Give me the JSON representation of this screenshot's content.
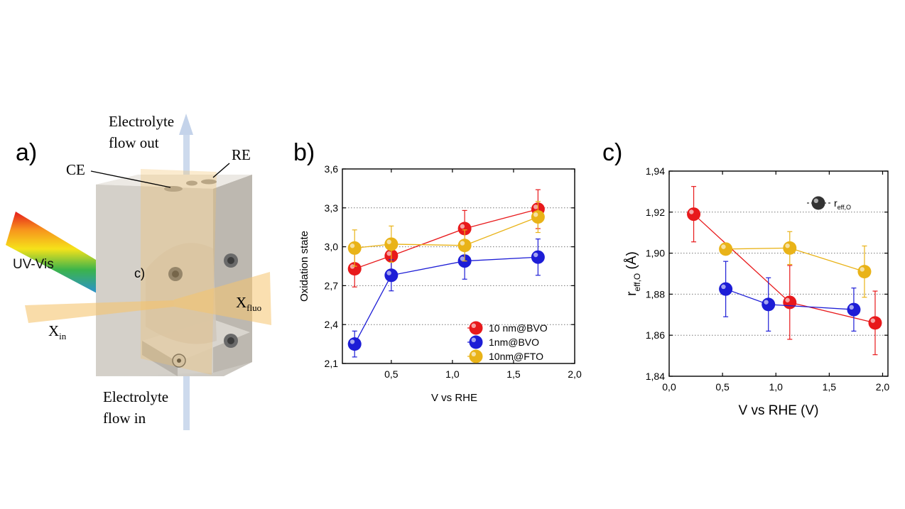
{
  "panels": {
    "a": {
      "label": "a)"
    },
    "b": {
      "label": "b)"
    },
    "c": {
      "label": "c)"
    }
  },
  "illustration": {
    "electrolyte_out": [
      "Electrolyte",
      "flow out"
    ],
    "electrolyte_in": [
      "Electrolyte",
      "flow in"
    ],
    "ce": "CE",
    "re": "RE",
    "uv_vis": "UV-Vis",
    "c_marker": "c)",
    "x_in": {
      "base": "X",
      "sub": "in"
    },
    "x_fluo": {
      "base": "X",
      "sub": "fluo"
    }
  },
  "chart_data": [
    {
      "type": "scatter",
      "panel": "b",
      "xlabel": "V vs RHE",
      "ylabel": "Oxidation state",
      "xlim": [
        0.1,
        2.0
      ],
      "ylim": [
        2.1,
        3.6
      ],
      "xticks": [
        "0,5",
        "1,0",
        "1,5",
        "2,0"
      ],
      "xtick_values": [
        0.5,
        1.0,
        1.5,
        2.0
      ],
      "yticks": [
        "2,1",
        "2,4",
        "2,7",
        "3,0",
        "3,3",
        "3,6"
      ],
      "ytick_values": [
        2.1,
        2.4,
        2.7,
        3.0,
        3.3,
        3.6
      ],
      "grid": "horizontal dotted",
      "legend_position": "bottom-right",
      "series": [
        {
          "name": "10 nm@BVO",
          "color": "#e8191b",
          "x": [
            0.2,
            0.5,
            1.1,
            1.7
          ],
          "y": [
            2.83,
            2.93,
            3.14,
            3.29
          ],
          "err": [
            0.14,
            0.12,
            0.14,
            0.15
          ]
        },
        {
          "name": "1nm@BVO",
          "color": "#1d1dd6",
          "x": [
            0.2,
            0.5,
            1.1,
            1.7
          ],
          "y": [
            2.25,
            2.78,
            2.89,
            2.92
          ],
          "err": [
            0.1,
            0.12,
            0.14,
            0.14
          ]
        },
        {
          "name": "10nm@FTO",
          "color": "#e9b318",
          "x": [
            0.2,
            0.5,
            1.1,
            1.7
          ],
          "y": [
            2.99,
            3.02,
            3.01,
            3.23
          ],
          "err": [
            0.14,
            0.14,
            0.12,
            0.12
          ]
        }
      ]
    },
    {
      "type": "scatter",
      "panel": "c",
      "xlabel": "V vs RHE (V)",
      "ylabel": {
        "base": "r",
        "sub": "eff,O",
        "unit": "(Å)"
      },
      "xlim": [
        0.0,
        2.05
      ],
      "ylim": [
        1.84,
        1.94
      ],
      "xticks": [
        "0,0",
        "0,5",
        "1,0",
        "1,5",
        "2,0"
      ],
      "xtick_values": [
        0.0,
        0.5,
        1.0,
        1.5,
        2.0
      ],
      "yticks": [
        "1,84",
        "1,86",
        "1,88",
        "1,90",
        "1,92",
        "1,94"
      ],
      "ytick_values": [
        1.84,
        1.86,
        1.88,
        1.9,
        1.92,
        1.94
      ],
      "grid": "horizontal dotted",
      "legend_position": "top-right",
      "legend": {
        "base": "r",
        "sub": "eff,O",
        "color": "#333333"
      },
      "series": [
        {
          "color": "#e8191b",
          "x": [
            0.23,
            1.13,
            1.93
          ],
          "y": [
            1.919,
            1.876,
            1.866
          ],
          "err": [
            0.0135,
            0.018,
            0.0155
          ]
        },
        {
          "color": "#1d1dd6",
          "x": [
            0.53,
            0.93,
            1.73
          ],
          "y": [
            1.8825,
            1.875,
            1.8725
          ],
          "err": [
            0.0135,
            0.013,
            0.0105
          ]
        },
        {
          "color": "#e9b318",
          "x": [
            0.53,
            1.13,
            1.83
          ],
          "y": [
            1.902,
            1.9025,
            1.891
          ],
          "err": [
            0.0005,
            0.008,
            0.0125
          ]
        }
      ]
    }
  ]
}
